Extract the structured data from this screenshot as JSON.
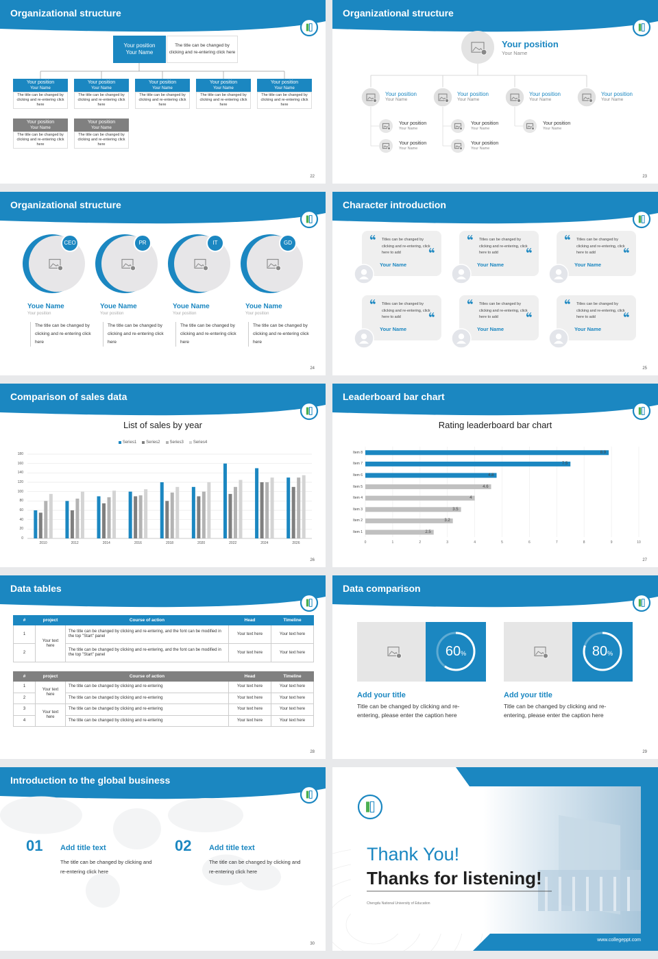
{
  "slides": [
    {
      "title": "Organizational structure",
      "page": "22",
      "org_chart": {
        "top": {
          "position": "Your position",
          "name": "Your Name",
          "note": "The title can be changed by clicking and re-entering click here"
        },
        "boxes": [
          {
            "position": "Your position",
            "name": "Your Name",
            "text": "The title can be changed by clicking and re-entering click here"
          },
          {
            "position": "Your position",
            "name": "Your Name",
            "text": "The title can be changed by clicking and re-entering click here"
          },
          {
            "position": "Your position",
            "name": "Your Name",
            "text": "The title can be changed by clicking and re-entering click here"
          },
          {
            "position": "Your position",
            "name": "Your Name",
            "text": "The title can be changed by clicking and re-entering click here"
          },
          {
            "position": "Your position",
            "name": "Your Name",
            "text": "The title can be changed by clicking and re-entering click here"
          }
        ],
        "gray_boxes": [
          {
            "position": "Your position",
            "name": "Your Name",
            "text": "The title can be changed by clicking and re-entering click here"
          },
          {
            "position": "Your position",
            "name": "Your Name",
            "text": "The title can be changed by clicking and re-entering click here"
          }
        ]
      }
    },
    {
      "title": "Organizational structure",
      "page": "23",
      "org_tree": {
        "top": {
          "position": "Your position",
          "name": "Your Name"
        },
        "branches": [
          {
            "position": "Your position",
            "name": "Your Name",
            "children": [
              {
                "position": "Your position",
                "name": "Your Name"
              },
              {
                "position": "Your position",
                "name": "Your Name"
              }
            ]
          },
          {
            "position": "Your position",
            "name": "Your Name",
            "children": [
              {
                "position": "Your position",
                "name": "Your Name"
              },
              {
                "position": "Your position",
                "name": "Your Name"
              }
            ]
          },
          {
            "position": "Your position",
            "name": "Your Name",
            "children": [
              {
                "position": "Your position",
                "name": "Your Name"
              }
            ]
          },
          {
            "position": "Your position",
            "name": "Your Name",
            "children": []
          }
        ]
      }
    },
    {
      "title": "Organizational structure",
      "page": "24",
      "team": [
        {
          "tag": "CEO",
          "name": "Youe Name",
          "position": "Your position",
          "text": "The title can be changed by clicking and re-entering click here"
        },
        {
          "tag": "PR",
          "name": "Youe Name",
          "position": "Your position",
          "text": "The title can be changed by clicking and re-entering click here"
        },
        {
          "tag": "IT",
          "name": "Youe Name",
          "position": "Your position",
          "text": "The title can be changed by clicking and re-entering click here"
        },
        {
          "tag": "GD",
          "name": "Youe Name",
          "position": "Your position",
          "text": "The title can be changed by clicking and re-entering click here"
        }
      ]
    },
    {
      "title": "Character introduction",
      "page": "25",
      "quotes": [
        {
          "text": "Titles can be changed by clicking and re-entering, click here to add",
          "name": "Your Name"
        },
        {
          "text": "Titles can be changed by clicking and re-entering, click here to add",
          "name": "Your Name"
        },
        {
          "text": "Titles can be changed by clicking and re-entering, click here to add",
          "name": "Your Name"
        },
        {
          "text": "Titles can be changed by clicking and re-entering, click here to add",
          "name": "Your Name"
        },
        {
          "text": "Titles can be changed by clicking and re-entering, click here to add",
          "name": "Your Name"
        },
        {
          "text": "Titles can be changed by clicking and re-entering, click here to add",
          "name": "Your Name"
        }
      ]
    },
    {
      "title": "Comparison of sales data",
      "page": "26",
      "chart_data": {
        "type": "bar",
        "title": "List of sales by year",
        "categories": [
          "2010",
          "2012",
          "2014",
          "2016",
          "2018",
          "2020",
          "2022",
          "2024",
          "2026"
        ],
        "series": [
          {
            "name": "Series1",
            "color": "#1b87c1",
            "values": [
              60,
              80,
              90,
              100,
              120,
              110,
              160,
              150,
              130
            ]
          },
          {
            "name": "Series2",
            "color": "#7f7f7f",
            "values": [
              55,
              60,
              75,
              90,
              80,
              90,
              95,
              120,
              110
            ]
          },
          {
            "name": "Series3",
            "color": "#b3b3b3",
            "values": [
              80,
              85,
              88,
              92,
              98,
              100,
              110,
              120,
              130
            ]
          },
          {
            "name": "Series4",
            "color": "#d4d4d4",
            "values": [
              95,
              100,
              102,
              105,
              110,
              120,
              125,
              130,
              135
            ]
          }
        ],
        "ylim": [
          0,
          180
        ],
        "yticks": [
          0,
          20,
          40,
          60,
          80,
          100,
          120,
          140,
          160,
          180
        ],
        "grid": true
      }
    },
    {
      "title": "Leaderboard bar chart",
      "page": "27",
      "chart_data": {
        "type": "barh",
        "title": "Rating leaderboard bar chart",
        "categories": [
          "Item 1",
          "Item 2",
          "Item 3",
          "Item 4",
          "Item 5",
          "Item 6",
          "Item 7",
          "Item 8"
        ],
        "values": [
          2.5,
          3.2,
          3.5,
          4,
          4.6,
          4.8,
          7.5,
          8.9
        ],
        "colors": [
          "#c0c0c0",
          "#c0c0c0",
          "#c0c0c0",
          "#c0c0c0",
          "#c0c0c0",
          "#1b87c1",
          "#1b87c1",
          "#1b87c1"
        ],
        "xlim": [
          0,
          10
        ],
        "xticks": [
          0,
          1,
          2,
          3,
          4,
          5,
          6,
          7,
          8,
          9,
          10
        ],
        "grid": true
      }
    },
    {
      "title": "Data tables",
      "page": "28",
      "tables": [
        {
          "color": "#1b87c1",
          "header": [
            "#",
            "project",
            "Course of action",
            "Head",
            "Timeline"
          ],
          "groups": [
            {
              "project": "Your text here",
              "rows": [
                [
                  "1",
                  "The title can be changed by clicking and re-entering, and the font can be modified in the top \"Start\" panel",
                  "Your text here",
                  "Your text here"
                ],
                [
                  "2",
                  "The title can be changed by clicking and re-entering, and the font can be modified in the top \"Start\" panel",
                  "Your text here",
                  "Your text here"
                ]
              ]
            }
          ]
        },
        {
          "color": "#808080",
          "header": [
            "#",
            "project",
            "Course of action",
            "Head",
            "Timeline"
          ],
          "groups": [
            {
              "project": "Your text here",
              "rows": [
                [
                  "1",
                  "The title can be changed by clicking and re-entering",
                  "Your text here",
                  "Your text here"
                ],
                [
                  "2",
                  "The title can be changed by clicking and re-entering",
                  "Your text here",
                  "Your text here"
                ]
              ]
            },
            {
              "project": "Your text here",
              "rows": [
                [
                  "3",
                  "The title can be changed by clicking and re-entering",
                  "Your text here",
                  "Your text here"
                ],
                [
                  "4",
                  "The title can be changed by clicking and re-entering",
                  "Your text here",
                  "Your text here"
                ]
              ]
            }
          ]
        }
      ]
    },
    {
      "title": "Data comparison",
      "page": "29",
      "comparison": [
        {
          "value": 60,
          "unit": "%",
          "title": "Add your title",
          "text": "Title can be changed by clicking and re-entering, please enter the caption here"
        },
        {
          "value": 80,
          "unit": "%",
          "title": "Add your title",
          "text": "Title can be changed by clicking and re-entering, please enter the caption here"
        }
      ]
    },
    {
      "title": "Introduction to the global business",
      "page": "30",
      "business": [
        {
          "number": "01",
          "title": "Add title text",
          "text": "The title can be changed by clicking and re-entering click here"
        },
        {
          "number": "02",
          "title": "Add title text",
          "text": "The title can be changed by clicking and re-entering click here"
        }
      ]
    },
    {
      "closing": {
        "thanks": "Thank You!",
        "subtitle": "Thanks for listening!",
        "school": "Chengdu National University of Education",
        "website": "www.collegeppt.com"
      }
    }
  ]
}
